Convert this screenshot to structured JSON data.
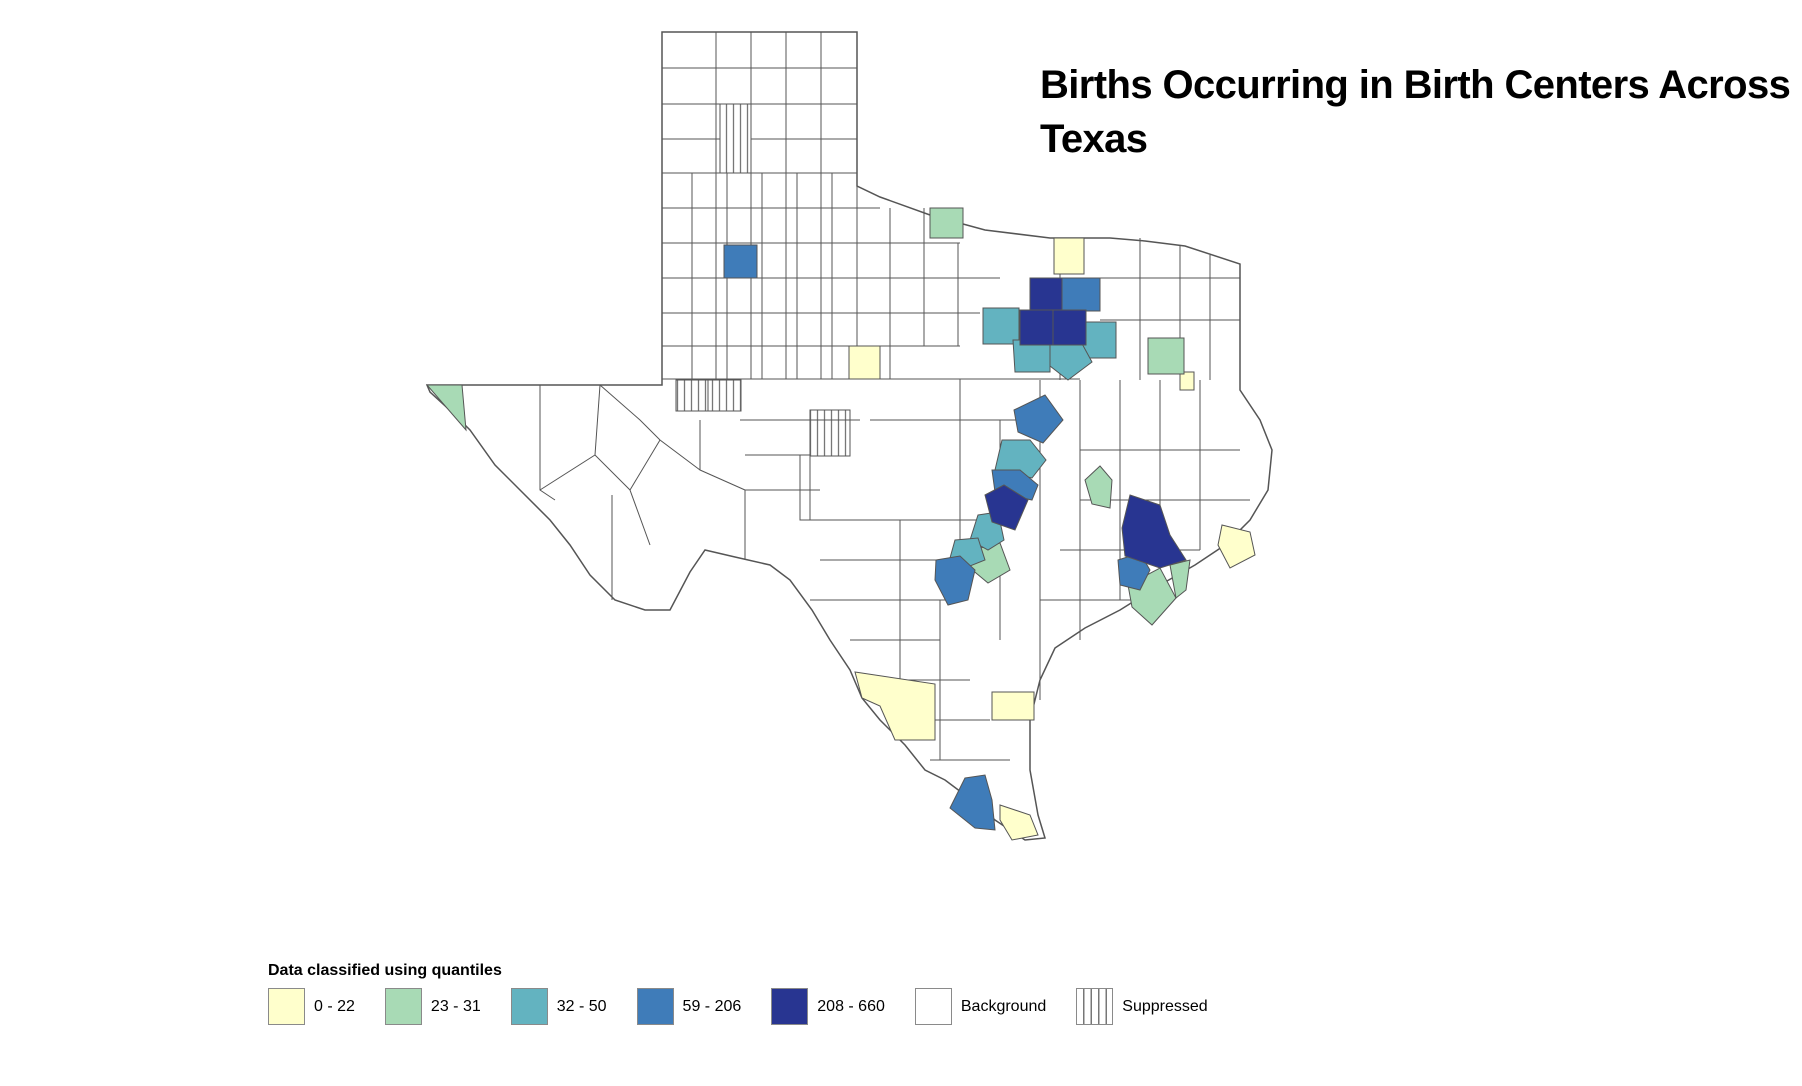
{
  "title": "Births Occurring in Birth Centers Across Texas",
  "legend": {
    "title": "Data classified using quantiles",
    "items": [
      {
        "label": "0 - 22",
        "color": "#ffffcc"
      },
      {
        "label": "23 - 31",
        "color": "#a8dab5"
      },
      {
        "label": "32 - 50",
        "color": "#63b3c0"
      },
      {
        "label": "59 - 206",
        "color": "#3f7cb9"
      },
      {
        "label": "208 - 660",
        "color": "#283591"
      },
      {
        "label": "Background",
        "color": "#ffffff"
      },
      {
        "label": "Suppressed",
        "color": "hatched"
      }
    ]
  },
  "colors": {
    "county_border": "#555555",
    "background": "#ffffff"
  }
}
